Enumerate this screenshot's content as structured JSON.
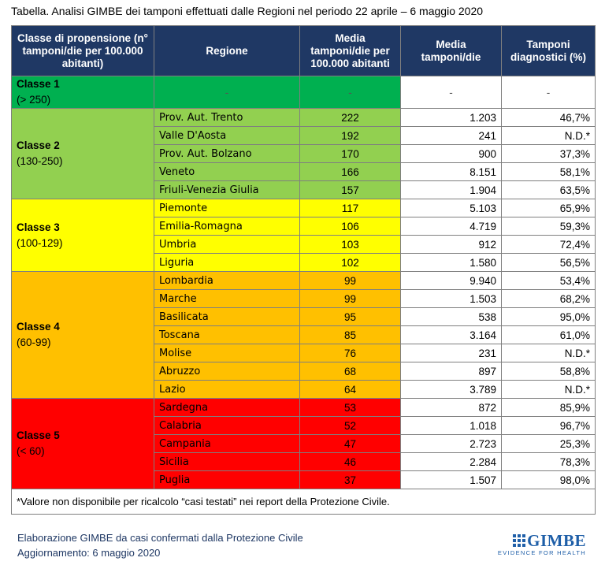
{
  "title": "Tabella. Analisi GIMBE dei tamponi effettuati dalle Regioni nel periodo 22 aprile – 6 maggio 2020",
  "table": {
    "header": [
      "Classe di propensione (n° tamponi/die per 100.000 abitanti)",
      "Regione",
      "Media tamponi/die per 100.000 abitanti",
      "Media tamponi/die",
      "Tamponi diagnostici (%)"
    ],
    "groups": [
      {
        "class": "Classe 1",
        "range": "(> 250)",
        "rows": [
          [
            "-",
            "-",
            "-",
            "-"
          ]
        ]
      },
      {
        "class": "Classe 2",
        "range": "(130-250)",
        "rows": [
          [
            "Prov. Aut. Trento",
            "222",
            "1.203",
            "46,7%"
          ],
          [
            "Valle D'Aosta",
            "192",
            "241",
            "N.D.*"
          ],
          [
            "Prov. Aut. Bolzano",
            "170",
            "900",
            "37,3%"
          ],
          [
            "Veneto",
            "166",
            "8.151",
            "58,1%"
          ],
          [
            "Friuli-Venezia Giulia",
            "157",
            "1.904",
            "63,5%"
          ]
        ]
      },
      {
        "class": "Classe 3",
        "range": "(100-129)",
        "rows": [
          [
            "Piemonte",
            "117",
            "5.103",
            "65,9%"
          ],
          [
            "Emilia-Romagna",
            "106",
            "4.719",
            "59,3%"
          ],
          [
            "Umbria",
            "103",
            "912",
            "72,4%"
          ],
          [
            "Liguria",
            "102",
            "1.580",
            "56,5%"
          ]
        ]
      },
      {
        "class": "Classe 4",
        "range": "(60-99)",
        "rows": [
          [
            "Lombardia",
            "99",
            "9.940",
            "53,4%"
          ],
          [
            "Marche",
            "99",
            "1.503",
            "68,2%"
          ],
          [
            "Basilicata",
            "95",
            "538",
            "95,0%"
          ],
          [
            "Toscana",
            "85",
            "3.164",
            "61,0%"
          ],
          [
            "Molise",
            "76",
            "231",
            "N.D.*"
          ],
          [
            "Abruzzo",
            "68",
            "897",
            "58,8%"
          ],
          [
            "Lazio",
            "64",
            "3.789",
            "N.D.*"
          ]
        ]
      },
      {
        "class": "Classe 5",
        "range": "(< 60)",
        "rows": [
          [
            "Sardegna",
            "53",
            "872",
            "85,9%"
          ],
          [
            "Calabria",
            "52",
            "1.018",
            "96,7%"
          ],
          [
            "Campania",
            "47",
            "2.723",
            "25,3%"
          ],
          [
            "Sicilia",
            "46",
            "2.284",
            "78,3%"
          ],
          [
            "Puglia",
            "37",
            "1.507",
            "98,0%"
          ]
        ]
      }
    ],
    "note": "*Valore non disponibile per ricalcolo “casi testati” nei report della Protezione Civile."
  },
  "footer": [
    "Elaborazione GIMBE da casi confermati dalla Protezione Civile",
    "Aggiornamento: 6 maggio 2020"
  ],
  "logo": {
    "name": "GIMBE",
    "tagline": "EVIDENCE FOR HEALTH"
  }
}
